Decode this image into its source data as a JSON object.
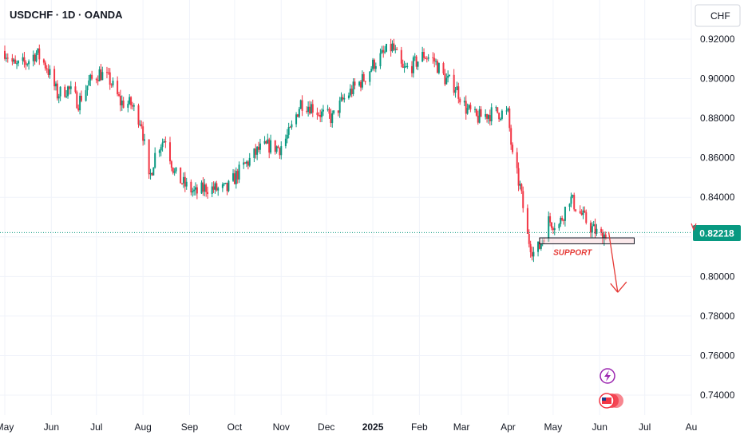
{
  "header": {
    "title": "USDCHF · 1D · OANDA"
  },
  "currency_button": {
    "label": "CHF"
  },
  "colors": {
    "up": "#089981",
    "down": "#f23645",
    "price_line": "#089981",
    "annotation": "#e53935"
  },
  "icons": [
    "lightning-icon",
    "flag-event-icon"
  ],
  "chart_data": {
    "type": "candlestick",
    "title": "USDCHF · 1D · OANDA",
    "ylabel": "CHF",
    "ylim": [
      0.728,
      0.93
    ],
    "y_ticks": [
      "0.92000",
      "0.90000",
      "0.88000",
      "0.86000",
      "0.84000",
      "0.82000",
      "0.80000",
      "0.78000",
      "0.76000",
      "0.74000"
    ],
    "x_ticks": [
      {
        "label": "May",
        "date": "2024-05-01"
      },
      {
        "label": "Jun",
        "date": "2024-06-01"
      },
      {
        "label": "Jul",
        "date": "2024-07-01"
      },
      {
        "label": "Aug",
        "date": "2024-08-01"
      },
      {
        "label": "Sep",
        "date": "2024-09-01"
      },
      {
        "label": "Oct",
        "date": "2024-10-01"
      },
      {
        "label": "Nov",
        "date": "2024-11-01"
      },
      {
        "label": "Dec",
        "date": "2024-12-01"
      },
      {
        "label": "2025",
        "date": "2025-01-01"
      },
      {
        "label": "Feb",
        "date": "2025-02-01"
      },
      {
        "label": "Mar",
        "date": "2025-03-01"
      },
      {
        "label": "Apr",
        "date": "2025-04-01"
      },
      {
        "label": "May",
        "date": "2025-05-01"
      },
      {
        "label": "Jun",
        "date": "2025-06-01"
      },
      {
        "label": "Jul",
        "date": "2025-07-01"
      },
      {
        "label": "Au",
        "date": "2025-08-01"
      }
    ],
    "x_range": [
      "2024-05-01",
      "2025-08-01"
    ],
    "last_price": {
      "value": 0.82218,
      "label": "0.82218"
    },
    "support": {
      "label": "SUPPORT",
      "low": 0.8165,
      "high": 0.8195,
      "start": "2025-04-22",
      "end": "2025-06-24"
    },
    "projection_arrow": {
      "from": {
        "date": "2025-06-07",
        "value": 0.8225
      },
      "to": {
        "date": "2025-06-13",
        "value": 0.792
      }
    },
    "anchors": [
      [
        "2024-05-01",
        0.914
      ],
      [
        "2024-05-08",
        0.906
      ],
      [
        "2024-05-15",
        0.908
      ],
      [
        "2024-05-22",
        0.913
      ],
      [
        "2024-05-29",
        0.906
      ],
      [
        "2024-06-05",
        0.892
      ],
      [
        "2024-06-12",
        0.895
      ],
      [
        "2024-06-19",
        0.888
      ],
      [
        "2024-06-26",
        0.898
      ],
      [
        "2024-07-03",
        0.903
      ],
      [
        "2024-07-10",
        0.899
      ],
      [
        "2024-07-17",
        0.888
      ],
      [
        "2024-07-24",
        0.887
      ],
      [
        "2024-07-31",
        0.878
      ],
      [
        "2024-08-05",
        0.848
      ],
      [
        "2024-08-10",
        0.865
      ],
      [
        "2024-08-16",
        0.87
      ],
      [
        "2024-08-22",
        0.852
      ],
      [
        "2024-08-29",
        0.846
      ],
      [
        "2024-09-05",
        0.842
      ],
      [
        "2024-09-12",
        0.845
      ],
      [
        "2024-09-19",
        0.844
      ],
      [
        "2024-09-26",
        0.844
      ],
      [
        "2024-10-03",
        0.852
      ],
      [
        "2024-10-10",
        0.858
      ],
      [
        "2024-10-17",
        0.864
      ],
      [
        "2024-10-24",
        0.866
      ],
      [
        "2024-10-31",
        0.865
      ],
      [
        "2024-11-07",
        0.873
      ],
      [
        "2024-11-14",
        0.888
      ],
      [
        "2024-11-21",
        0.886
      ],
      [
        "2024-11-28",
        0.882
      ],
      [
        "2024-12-05",
        0.88
      ],
      [
        "2024-12-12",
        0.889
      ],
      [
        "2024-12-19",
        0.895
      ],
      [
        "2024-12-26",
        0.9
      ],
      [
        "2025-01-02",
        0.908
      ],
      [
        "2025-01-09",
        0.913
      ],
      [
        "2025-01-14",
        0.916
      ],
      [
        "2025-01-21",
        0.904
      ],
      [
        "2025-01-28",
        0.907
      ],
      [
        "2025-02-04",
        0.912
      ],
      [
        "2025-02-11",
        0.909
      ],
      [
        "2025-02-18",
        0.9
      ],
      [
        "2025-02-25",
        0.896
      ],
      [
        "2025-03-04",
        0.885
      ],
      [
        "2025-03-11",
        0.88
      ],
      [
        "2025-03-18",
        0.882
      ],
      [
        "2025-03-25",
        0.883
      ],
      [
        "2025-04-01",
        0.882
      ],
      [
        "2025-04-04",
        0.86
      ],
      [
        "2025-04-09",
        0.845
      ],
      [
        "2025-04-14",
        0.82
      ],
      [
        "2025-04-18",
        0.812
      ],
      [
        "2025-04-22",
        0.815
      ],
      [
        "2025-04-28",
        0.828
      ],
      [
        "2025-05-05",
        0.826
      ],
      [
        "2025-05-12",
        0.84
      ],
      [
        "2025-05-19",
        0.832
      ],
      [
        "2025-05-26",
        0.825
      ],
      [
        "2025-06-02",
        0.82
      ],
      [
        "2025-06-06",
        0.8222
      ]
    ]
  }
}
